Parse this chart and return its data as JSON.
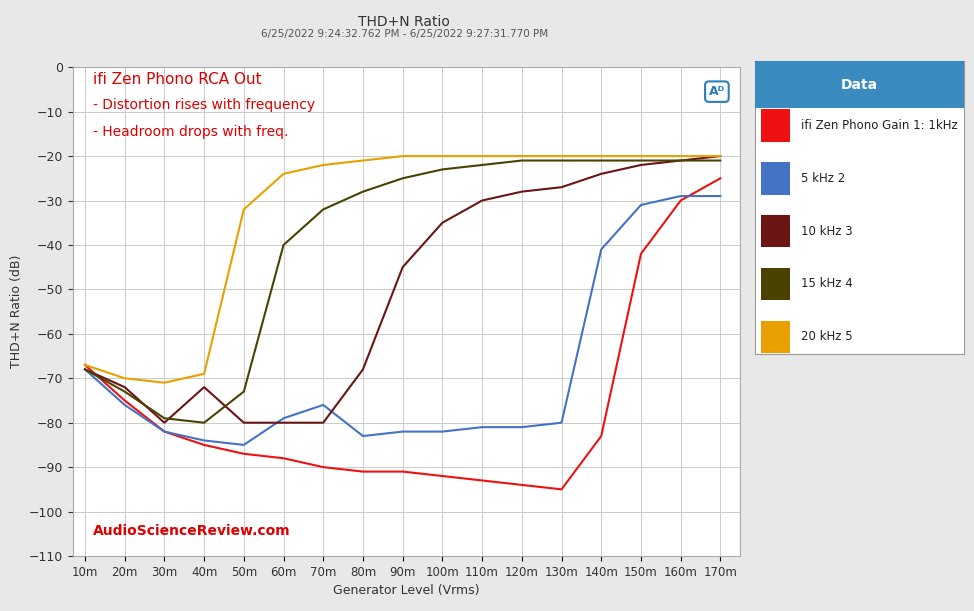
{
  "title": "THD+N Ratio",
  "subtitle": "6/25/2022 9:24:32.762 PM - 6/25/2022 9:27:31.770 PM",
  "xlabel": "Generator Level (Vrms)",
  "ylabel": "THD+N Ratio (dB)",
  "annotation_title": "ifi Zen Phono RCA Out",
  "annotation_line1": "- Distortion rises with frequency",
  "annotation_line2": "- Headroom drops with freq.",
  "watermark": "AudioScienceReview.com",
  "ylim": [
    -110,
    0
  ],
  "yticks": [
    0,
    -10,
    -20,
    -30,
    -40,
    -50,
    -60,
    -70,
    -80,
    -90,
    -100,
    -110
  ],
  "x_labels": [
    "10m",
    "20m",
    "30m",
    "40m",
    "50m",
    "60m",
    "70m",
    "80m",
    "90m",
    "100m",
    "110m",
    "120m",
    "130m",
    "140m",
    "150m",
    "160m",
    "170m"
  ],
  "x_values": [
    0.01,
    0.02,
    0.03,
    0.04,
    0.05,
    0.06,
    0.07,
    0.08,
    0.09,
    0.1,
    0.11,
    0.12,
    0.13,
    0.14,
    0.15,
    0.16,
    0.17
  ],
  "legend_title": "Data",
  "legend_title_bg": "#3a8bbf",
  "series": [
    {
      "label": "ifi Zen Phono Gain 1: 1kHz",
      "color": "#ee1111",
      "y": [
        -67,
        -75,
        -82,
        -85,
        -87,
        -88,
        -90,
        -91,
        -91,
        -92,
        -93,
        -94,
        -95,
        -83,
        -42,
        -30,
        -25
      ]
    },
    {
      "label": "5 kHz 2",
      "color": "#4472c4",
      "y": [
        -68,
        -76,
        -82,
        -84,
        -85,
        -79,
        -76,
        -83,
        -82,
        -82,
        -81,
        -81,
        -80,
        -41,
        -31,
        -29,
        -29
      ]
    },
    {
      "label": "10 kHz 3",
      "color": "#6b1515",
      "y": [
        -68,
        -72,
        -80,
        -72,
        -80,
        -80,
        -80,
        -68,
        -45,
        -35,
        -30,
        -28,
        -27,
        -24,
        -22,
        -21,
        -20
      ]
    },
    {
      "label": "15 kHz 4",
      "color": "#4a4200",
      "y": [
        -68,
        -73,
        -79,
        -80,
        -73,
        -40,
        -32,
        -28,
        -25,
        -23,
        -22,
        -21,
        -21,
        -21,
        -21,
        -21,
        -21
      ]
    },
    {
      "label": "20 kHz 5",
      "color": "#e8a000",
      "y": [
        -67,
        -70,
        -71,
        -69,
        -32,
        -24,
        -22,
        -21,
        -20,
        -20,
        -20,
        -20,
        -20,
        -20,
        -20,
        -20,
        -20
      ]
    }
  ],
  "background_color": "#e8e8e8",
  "grid_color": "#cccccc",
  "plot_bg": "#ffffff"
}
